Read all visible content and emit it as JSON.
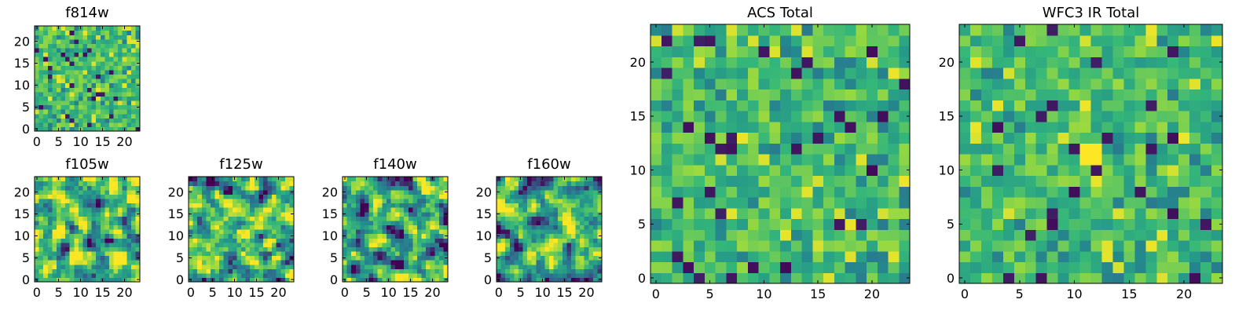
{
  "colormap": {
    "name": "viridis",
    "stops": [
      "#440154",
      "#31688e",
      "#21908d",
      "#35b779",
      "#90d743",
      "#fde725"
    ]
  },
  "chart_data": [
    {
      "type": "heatmap",
      "title": "f814w",
      "xlabel": "",
      "ylabel": "",
      "size": [
        24,
        24
      ],
      "xlim": [
        0,
        24
      ],
      "ylim": [
        0,
        24
      ],
      "xticks": [
        0,
        5,
        10,
        15,
        20
      ],
      "yticks": [
        0,
        5,
        10,
        15,
        20
      ],
      "texture": "noise",
      "seed": 11,
      "value_range": [
        0,
        1
      ]
    },
    {
      "type": "heatmap",
      "title": "f105w",
      "xlabel": "",
      "ylabel": "",
      "size": [
        24,
        24
      ],
      "xlim": [
        0,
        24
      ],
      "ylim": [
        0,
        24
      ],
      "xticks": [
        0,
        5,
        10,
        15,
        20
      ],
      "yticks": [
        0,
        5,
        10,
        15,
        20
      ],
      "texture": "smooth",
      "seed": 23,
      "value_range": [
        0,
        1
      ]
    },
    {
      "type": "heatmap",
      "title": "f125w",
      "xlabel": "",
      "ylabel": "",
      "size": [
        24,
        24
      ],
      "xlim": [
        0,
        24
      ],
      "ylim": [
        0,
        24
      ],
      "xticks": [
        0,
        5,
        10,
        15,
        20
      ],
      "yticks": [
        0,
        5,
        10,
        15,
        20
      ],
      "texture": "smooth",
      "seed": 37,
      "value_range": [
        0,
        1
      ]
    },
    {
      "type": "heatmap",
      "title": "f140w",
      "xlabel": "",
      "ylabel": "",
      "size": [
        24,
        24
      ],
      "xlim": [
        0,
        24
      ],
      "ylim": [
        0,
        24
      ],
      "xticks": [
        0,
        5,
        10,
        15,
        20
      ],
      "yticks": [
        0,
        5,
        10,
        15,
        20
      ],
      "texture": "smooth",
      "seed": 41,
      "value_range": [
        0,
        1
      ]
    },
    {
      "type": "heatmap",
      "title": "f160w",
      "xlabel": "",
      "ylabel": "",
      "size": [
        24,
        24
      ],
      "xlim": [
        0,
        24
      ],
      "ylim": [
        0,
        24
      ],
      "xticks": [
        0,
        5,
        10,
        15,
        20
      ],
      "yticks": [
        0,
        5,
        10,
        15,
        20
      ],
      "texture": "smooth",
      "seed": 53,
      "value_range": [
        0,
        1
      ]
    },
    {
      "type": "heatmap",
      "title": "ACS Total",
      "xlabel": "",
      "ylabel": "",
      "size": [
        24,
        24
      ],
      "xlim": [
        0,
        24
      ],
      "ylim": [
        0,
        24
      ],
      "xticks": [
        0,
        5,
        10,
        15,
        20
      ],
      "yticks": [
        0,
        5,
        10,
        15,
        20
      ],
      "texture": "noise",
      "seed": 67,
      "value_range": [
        0,
        1
      ]
    },
    {
      "type": "heatmap",
      "title": "WFC3 IR Total",
      "xlabel": "",
      "ylabel": "",
      "size": [
        24,
        24
      ],
      "xlim": [
        0,
        24
      ],
      "ylim": [
        0,
        24
      ],
      "xticks": [
        0,
        5,
        10,
        15,
        20
      ],
      "yticks": [
        0,
        5,
        10,
        15,
        20
      ],
      "texture": "noise",
      "seed": 79,
      "value_range": [
        0,
        1
      ],
      "bright_patch": {
        "x": [
          11,
          12
        ],
        "y": [
          11,
          12
        ]
      }
    }
  ]
}
